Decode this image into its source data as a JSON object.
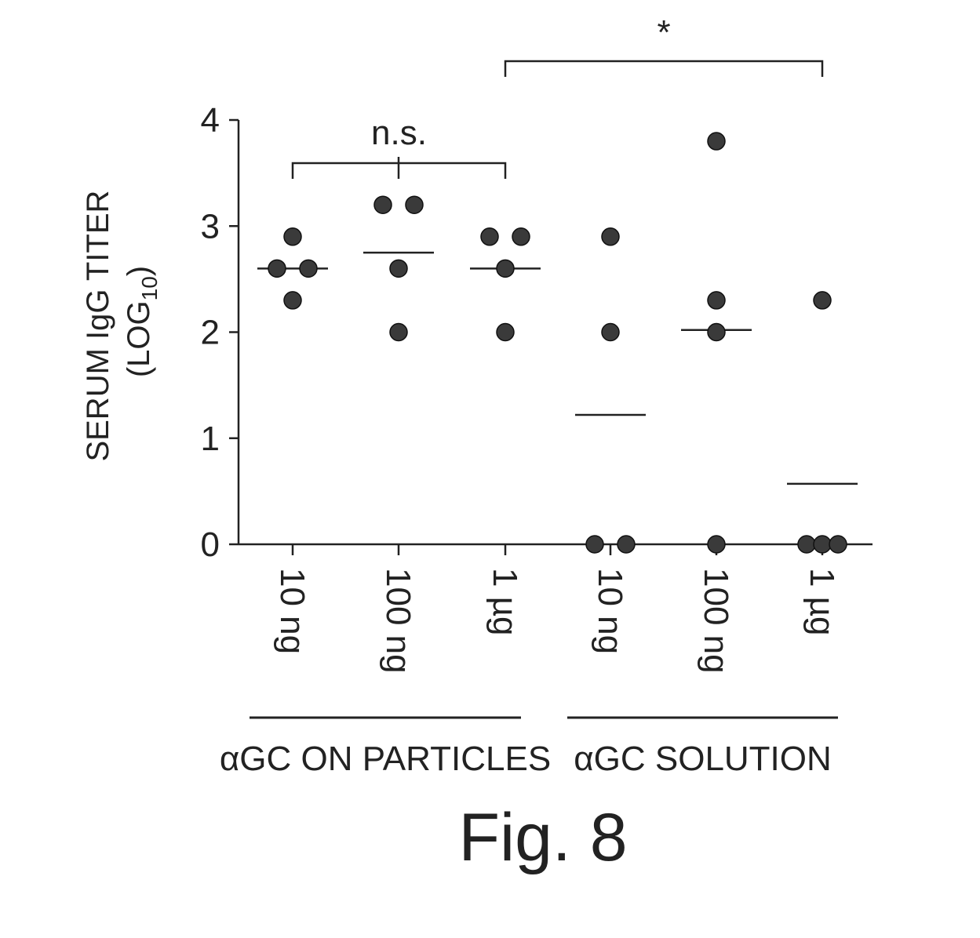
{
  "figure": {
    "caption": "Fig. 8"
  },
  "chart_data": {
    "type": "scatter",
    "ylabel": "SERUM IgG TITER",
    "ylabel_unit_prefix": "(LOG",
    "ylabel_unit_subscript": "10",
    "ylabel_unit_suffix": ")",
    "ylim": [
      0,
      4
    ],
    "yticks": [
      "0",
      "1",
      "2",
      "3",
      "4"
    ],
    "categories": [
      "10 ng",
      "100 ng",
      "1 µg",
      "10 ng",
      "100 ng",
      "1 µg"
    ],
    "groups": [
      {
        "label": "αGC ON PARTICLES",
        "category_indices": [
          0,
          1,
          2
        ]
      },
      {
        "label": "αGC SOLUTION",
        "category_indices": [
          3,
          4,
          5
        ]
      }
    ],
    "series": [
      {
        "values": [
          2.6,
          2.9,
          2.6,
          2.3
        ],
        "mean": 2.6
      },
      {
        "values": [
          3.2,
          3.2,
          2.6,
          2.0
        ],
        "mean": 2.75
      },
      {
        "values": [
          2.9,
          2.9,
          2.6,
          2.0
        ],
        "mean": 2.6
      },
      {
        "values": [
          2.9,
          2.0,
          0,
          0
        ],
        "mean": 1.22
      },
      {
        "values": [
          3.8,
          2.3,
          2.0,
          0
        ],
        "mean": 2.02
      },
      {
        "values": [
          2.3,
          0,
          0,
          0
        ],
        "mean": 0.57
      }
    ],
    "annotations": [
      {
        "text": "n.s.",
        "from_category": 0,
        "to_category": 2,
        "center_tick": 1
      },
      {
        "text": "*",
        "from_category": 2,
        "to_category": 5
      }
    ]
  }
}
